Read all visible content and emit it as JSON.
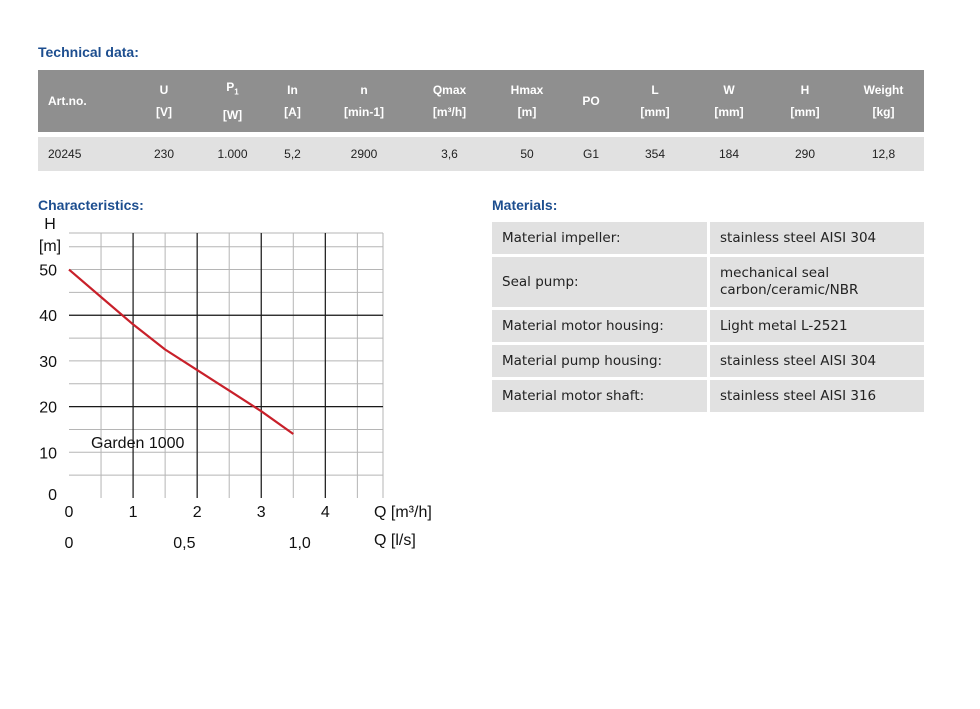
{
  "technical": {
    "title": "Technical data:",
    "headers": [
      {
        "line1": "Art.no.",
        "line2": ""
      },
      {
        "line1": "U",
        "line2": "[V]"
      },
      {
        "line1": "P",
        "sub": "1",
        "line2": "[W]"
      },
      {
        "line1": "In",
        "line2": "[A]"
      },
      {
        "line1": "n",
        "line2": "[min-1]"
      },
      {
        "line1": "Qmax",
        "line2": "[m³/h]"
      },
      {
        "line1": "Hmax",
        "line2": "[m]"
      },
      {
        "line1": "PO",
        "line2": ""
      },
      {
        "line1": "L",
        "line2": "[mm]"
      },
      {
        "line1": "W",
        "line2": "[mm]"
      },
      {
        "line1": "H",
        "line2": "[mm]"
      },
      {
        "line1": "Weight",
        "line2": "[kg]"
      }
    ],
    "row": [
      "20245",
      "230",
      "1.000",
      "5,2",
      "2900",
      "3,6",
      "50",
      "G1",
      "354",
      "184",
      "290",
      "12,8"
    ]
  },
  "characteristics": {
    "title": "Characteristics:"
  },
  "materials": {
    "title": "Materials:",
    "rows": [
      {
        "label": "Material impeller:",
        "value_lines": [
          "stainless steel AISI 304"
        ]
      },
      {
        "label": "Seal pump:",
        "value_lines": [
          "mechanical seal",
          "carbon/ceramic/NBR"
        ]
      },
      {
        "label": "Material motor housing:",
        "value_lines": [
          "Light metal L-2521"
        ]
      },
      {
        "label": "Material pump housing:",
        "value_lines": [
          "stainless steel AISI 304"
        ]
      },
      {
        "label": "Material motor shaft:",
        "value_lines": [
          "stainless steel AISI 316"
        ]
      }
    ]
  },
  "chart_data": {
    "type": "line",
    "ylabel_line1": "H",
    "ylabel_line2": "[m]",
    "xlabel": "Q [m³/h]",
    "xlabel2": "Q [l/s]",
    "xlim": [
      0,
      4.9
    ],
    "ylim": [
      0,
      58
    ],
    "y_ticks": [
      0,
      10,
      20,
      30,
      40,
      50
    ],
    "x_ticks": [
      0,
      1,
      2,
      3,
      4
    ],
    "x2_ticks": [
      {
        "q": 0,
        "label": "0"
      },
      {
        "q": 1.8,
        "label": "0,5"
      },
      {
        "q": 3.6,
        "label": "1,0"
      }
    ],
    "series": [
      {
        "name": "Garden 1000",
        "color": "#c8202a",
        "x": [
          0,
          0.5,
          1.0,
          1.5,
          2.0,
          2.5,
          3.0,
          3.5
        ],
        "y": [
          50,
          44,
          38,
          32.5,
          28,
          23.5,
          19,
          14
        ]
      }
    ],
    "grid": true
  }
}
